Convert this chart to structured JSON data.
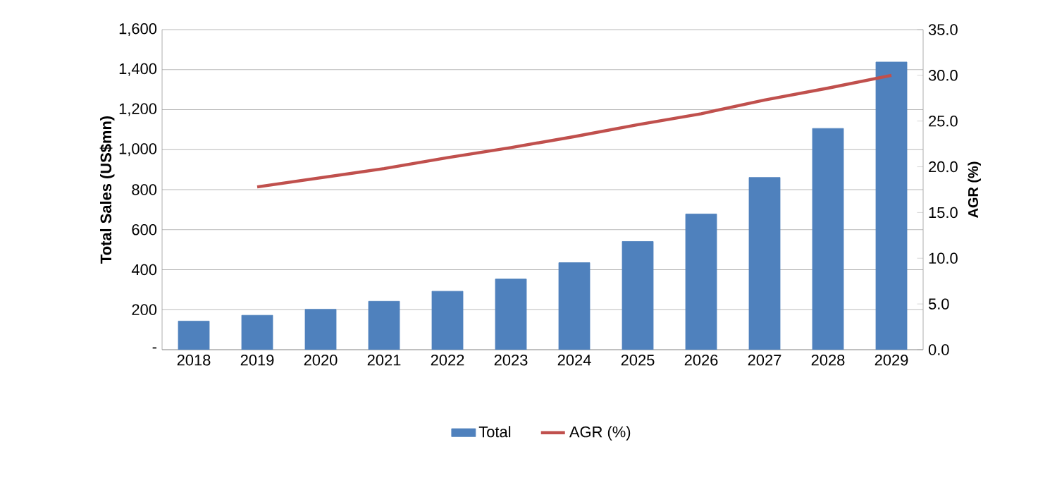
{
  "chart_data": {
    "type": "bar",
    "ylabel": "Total Sales (US$mn)",
    "y2label": "AGR (%)",
    "categories": [
      "2018",
      "2019",
      "2020",
      "2021",
      "2022",
      "2023",
      "2024",
      "2025",
      "2026",
      "2027",
      "2028",
      "2029"
    ],
    "series": [
      {
        "name": "Total",
        "color": "#4f81bd",
        "values": [
          143,
          172,
          202,
          242,
          292,
          353,
          435,
          541,
          678,
          861,
          1106,
          1438
        ]
      },
      {
        "name": "AGR (%)",
        "type": "line",
        "axis": "y2",
        "color": "#c0504d",
        "values": [
          null,
          17.8,
          18.8,
          19.8,
          21.0,
          22.1,
          23.3,
          24.6,
          25.8,
          27.3,
          28.6,
          30.0
        ]
      }
    ],
    "ylim": [
      0,
      1600
    ],
    "yticks": [
      {
        "value": 0,
        "label": "-"
      },
      {
        "value": 200,
        "label": "200"
      },
      {
        "value": 400,
        "label": "400"
      },
      {
        "value": 600,
        "label": "600"
      },
      {
        "value": 800,
        "label": "800"
      },
      {
        "value": 1000,
        "label": "1,000"
      },
      {
        "value": 1200,
        "label": "1,200"
      },
      {
        "value": 1400,
        "label": "1,400"
      },
      {
        "value": 1600,
        "label": "1,600"
      }
    ],
    "y2lim": [
      0,
      35
    ],
    "y2ticks": [
      {
        "value": 0,
        "label": "0.0"
      },
      {
        "value": 5,
        "label": "5.0"
      },
      {
        "value": 10,
        "label": "10.0"
      },
      {
        "value": 15,
        "label": "15.0"
      },
      {
        "value": 20,
        "label": "20.0"
      },
      {
        "value": 25,
        "label": "25.0"
      },
      {
        "value": 30,
        "label": "30.0"
      },
      {
        "value": 35,
        "label": "35.0"
      }
    ],
    "grid": "y",
    "legend": "bottom",
    "marker": "none",
    "line_style": "solid"
  }
}
